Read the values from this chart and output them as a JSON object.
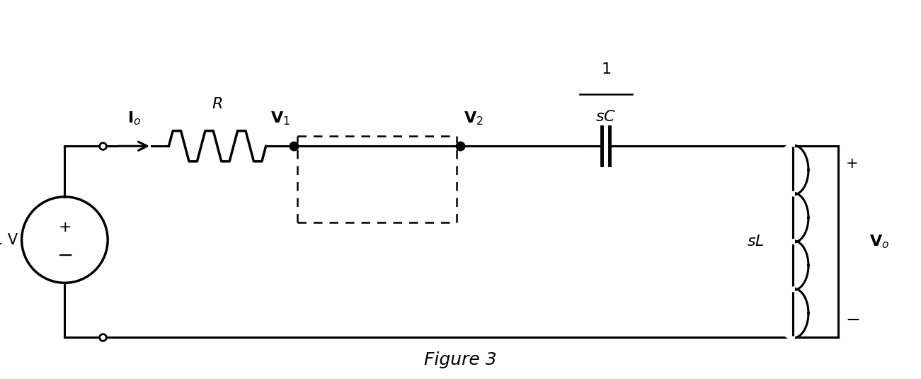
{
  "figure_caption": "Figure 3",
  "bg_color": "#ffffff",
  "line_color": "#000000",
  "line_width": 2.2,
  "caption_fontsize": 18,
  "caption_style": "italic"
}
